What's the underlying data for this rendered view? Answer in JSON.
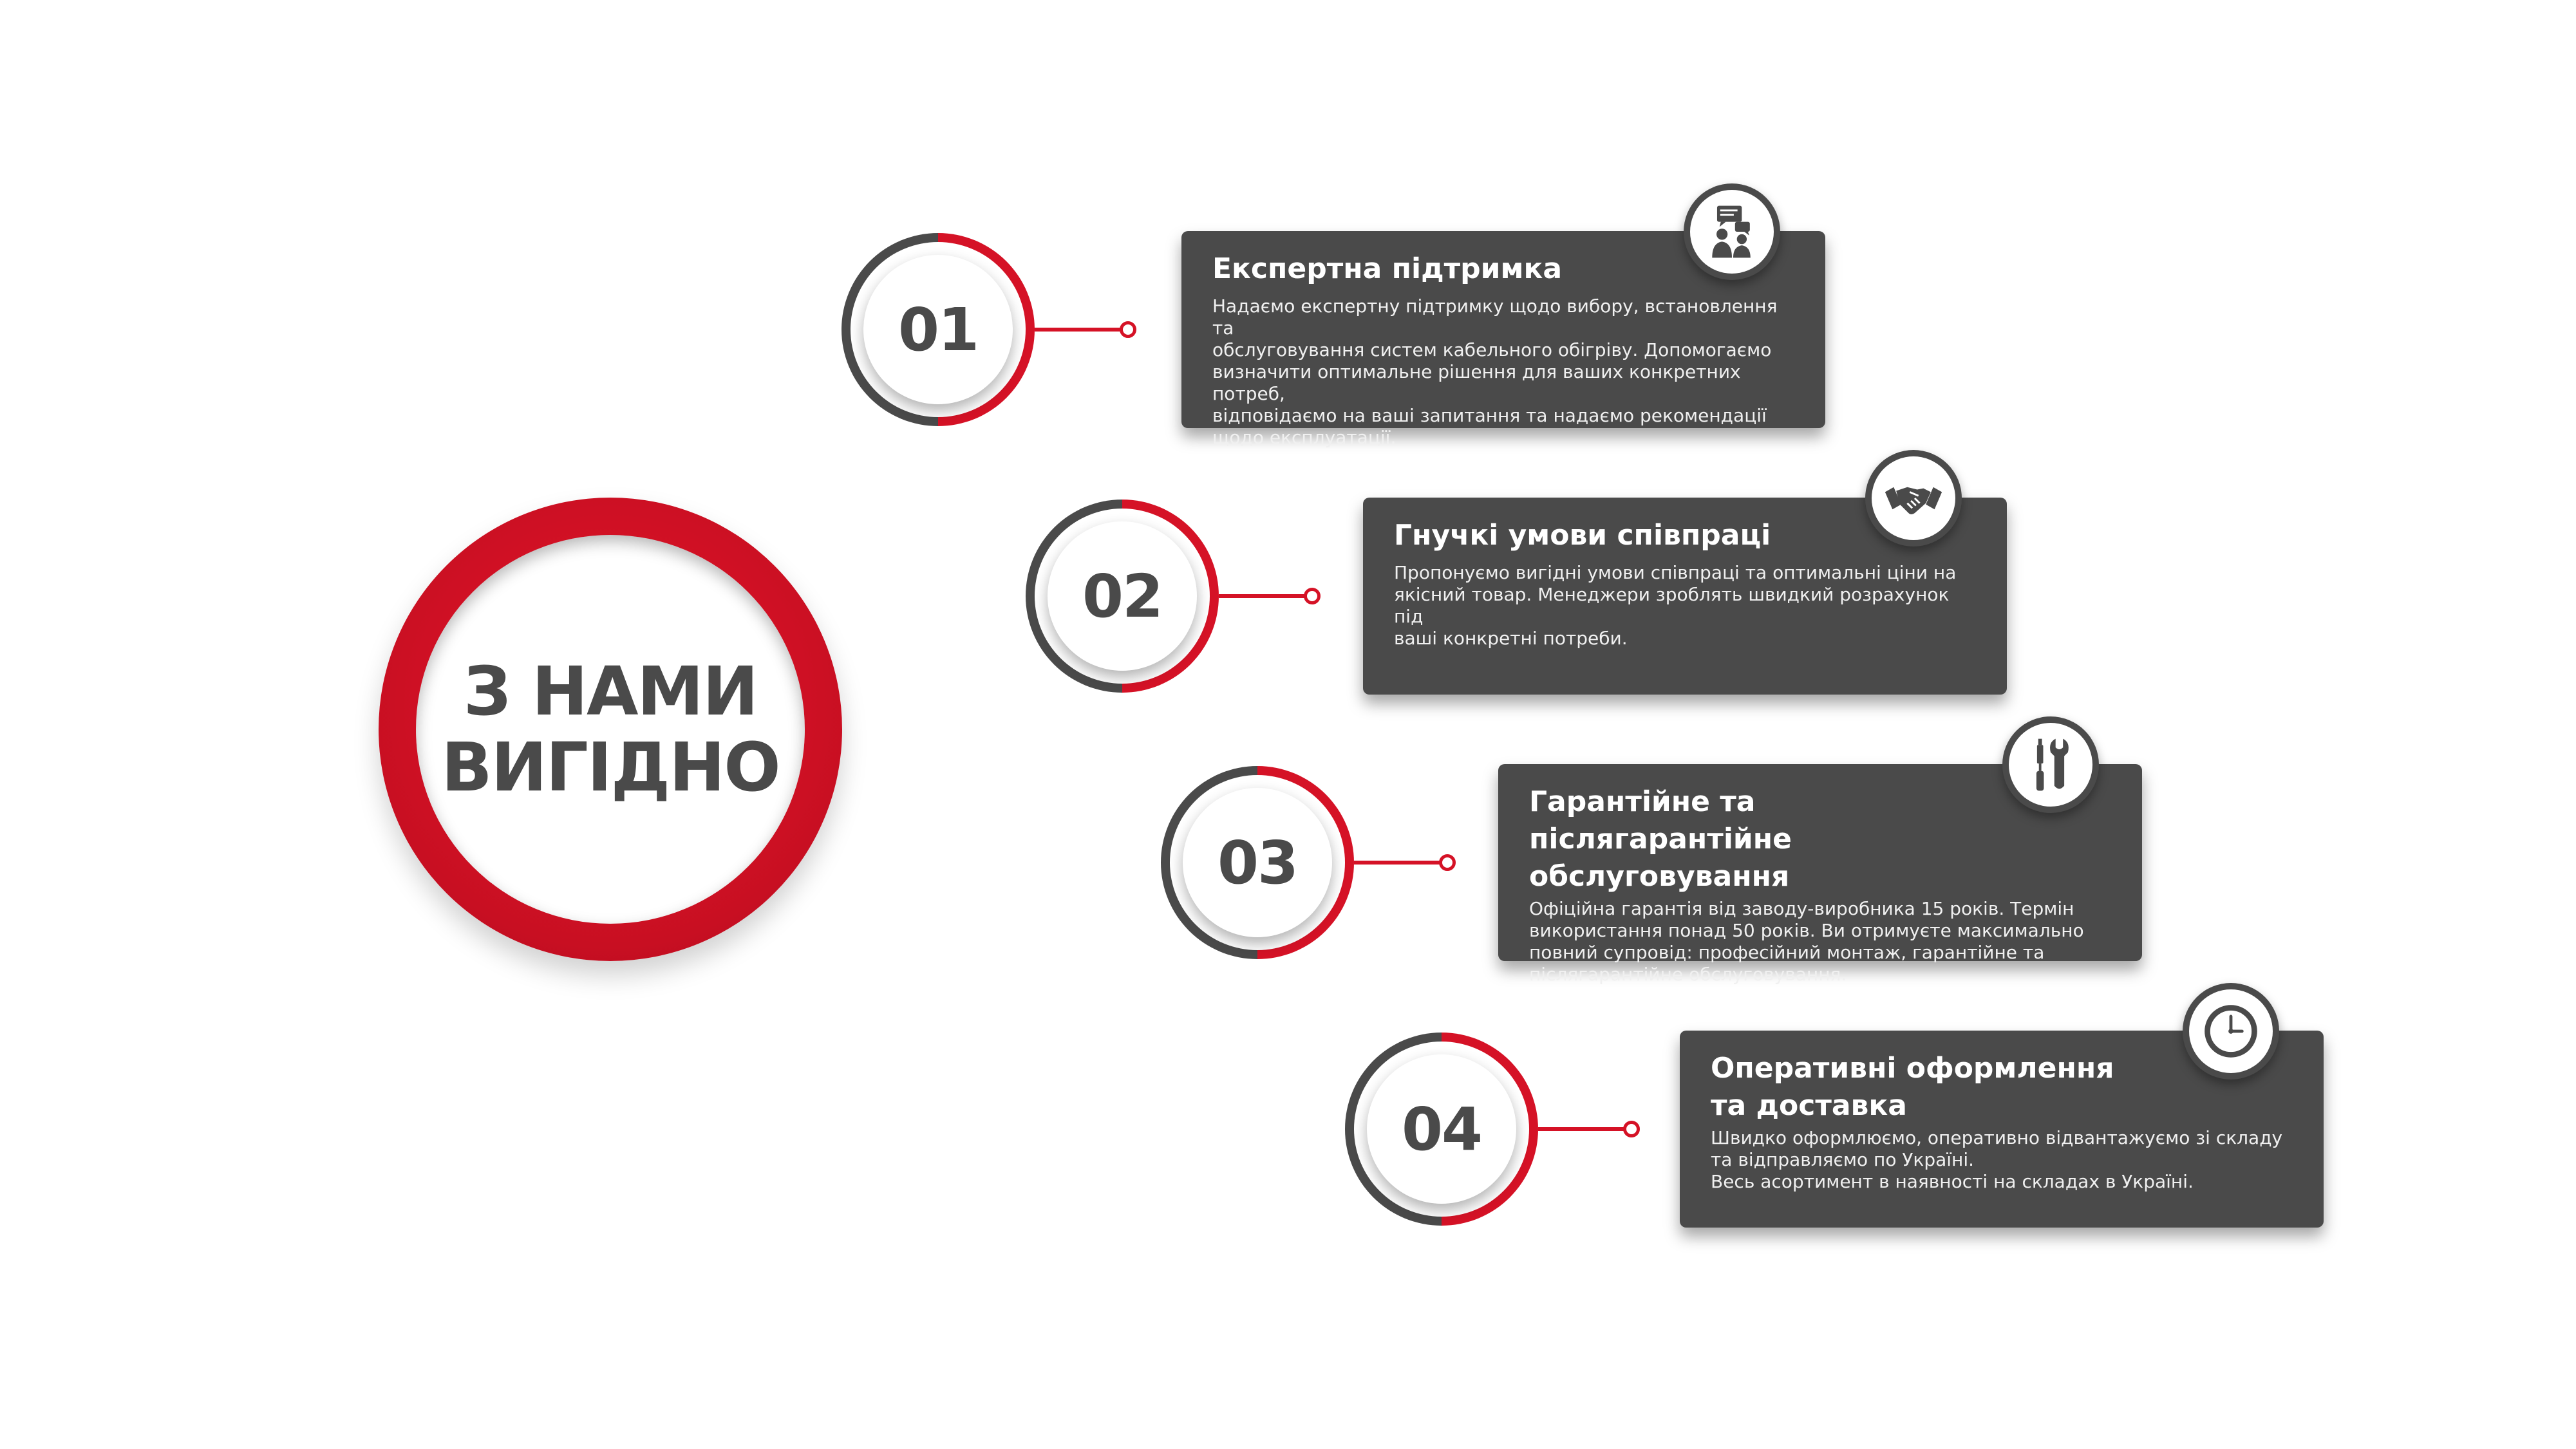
{
  "hero": {
    "line1": "З НАМИ",
    "line2": "ВИГІДНО"
  },
  "colors": {
    "accent_red": "#d51226",
    "dark_gray": "#4a4a4a",
    "background": "#ffffff"
  },
  "steps": [
    {
      "number": "01",
      "icon": "consultation-icon",
      "title": "Експертна підтримка",
      "text": "Надаємо експертну підтримку щодо вибору, встановлення та\nобслуговування систем кабельного обігріву. Допомогаємо\nвизначити оптимальне рішення для ваших конкретних потреб,\nвідповідаємо на ваші запитання та надаємо рекомендації\nщодо експлуатації."
    },
    {
      "number": "02",
      "icon": "handshake-icon",
      "title": "Гнучкі умови співпраці",
      "text": "Пропонуємо вигідні умови співпраці та оптимальні ціни на\nякісний товар. Менеджери зроблять швидкий розрахунок під\nваші конкретні потреби."
    },
    {
      "number": "03",
      "icon": "tools-icon",
      "title": "Гарантійне та післягарантійне обслуговування",
      "text": "Офіційна гарантія від заводу-виробника 15 років. Термін\nвикористання понад 50 років. Ви отримуєте максимально\nповний супровід: професійний монтаж, гарантійне та\nпіслягарантійне обслуговування."
    },
    {
      "number": "04",
      "icon": "clock-icon",
      "title": "Оперативні оформлення та доставка",
      "text": "Швидко оформлюємо, оперативно відвантажуємо зі складу\nта відправляємо по Україні.\nВесь асортимент в наявності на складах в Україні."
    }
  ]
}
